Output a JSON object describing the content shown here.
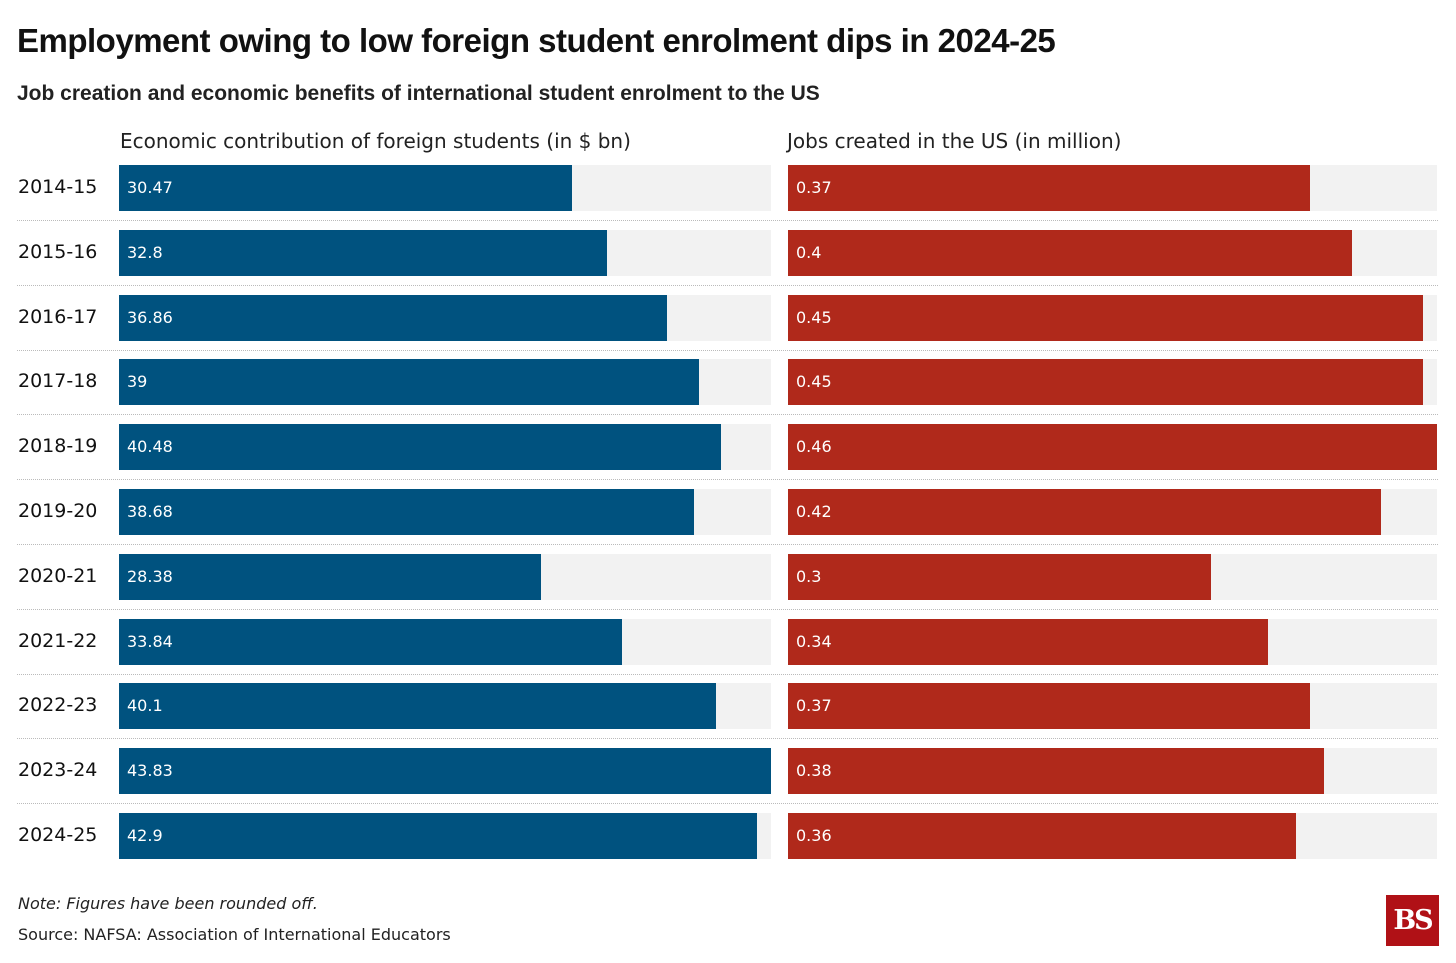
{
  "title": "Employment owing to low foreign student enrolment dips in 2024-25",
  "subtitle": "Job creation and economic benefits of international student enrolment to the US",
  "note": "Note: Figures have been rounded off.",
  "source": "Source: NAFSA: Association of International Educators",
  "logo_text": "BS",
  "chart_data": [
    {
      "type": "bar",
      "orientation": "horizontal",
      "title": "Economic contribution of foreign students (in $ bn)",
      "color": "#00527f",
      "categories": [
        "2014-15",
        "2015-16",
        "2016-17",
        "2017-18",
        "2018-19",
        "2019-20",
        "2020-21",
        "2021-22",
        "2022-23",
        "2023-24",
        "2024-25"
      ],
      "values": [
        30.47,
        32.8,
        36.86,
        39,
        40.48,
        38.68,
        28.38,
        33.84,
        40.1,
        43.83,
        42.9
      ],
      "labels": [
        "30.47",
        "32.8",
        "36.86",
        "39",
        "40.48",
        "38.68",
        "28.38",
        "33.84",
        "40.1",
        "43.83",
        "42.9"
      ],
      "xlim": [
        0,
        43.83
      ]
    },
    {
      "type": "bar",
      "orientation": "horizontal",
      "title": "Jobs created in the US (in million)",
      "color": "#b0291b",
      "categories": [
        "2014-15",
        "2015-16",
        "2016-17",
        "2017-18",
        "2018-19",
        "2019-20",
        "2020-21",
        "2021-22",
        "2022-23",
        "2023-24",
        "2024-25"
      ],
      "values": [
        0.37,
        0.4,
        0.45,
        0.45,
        0.46,
        0.42,
        0.3,
        0.34,
        0.37,
        0.38,
        0.36
      ],
      "labels": [
        "0.37",
        "0.4",
        "0.45",
        "0.45",
        "0.46",
        "0.42",
        "0.3",
        "0.34",
        "0.37",
        "0.38",
        "0.36"
      ],
      "xlim": [
        0,
        0.46
      ]
    }
  ]
}
